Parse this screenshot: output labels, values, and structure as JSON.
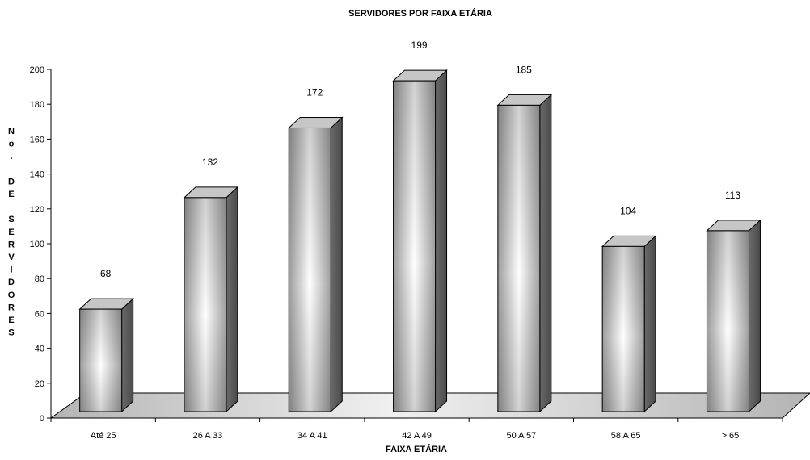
{
  "chart_data": {
    "type": "bar",
    "title": "SERVIDORES POR FAIXA ETÁRIA",
    "xlabel": "FAIXA ETÁRIA",
    "ylabel": "No. DE SERVIDORES",
    "ylabel_letters": [
      "N",
      "o",
      ".",
      "",
      "D",
      "E",
      "",
      "S",
      "E",
      "R",
      "V",
      "I",
      "D",
      "O",
      "R",
      "E",
      "S"
    ],
    "categories": [
      "Até 25",
      "26 A 33",
      "34 A 41",
      "42 A 49",
      "50 A 57",
      "58 A 65",
      "> 65"
    ],
    "values": [
      68,
      132,
      172,
      199,
      185,
      104,
      113
    ],
    "ylim": [
      0,
      200
    ],
    "yticks": [
      0,
      20,
      40,
      60,
      80,
      100,
      120,
      140,
      160,
      180,
      200
    ],
    "grid": false,
    "legend": "none",
    "style": "3d-cylinder-bars",
    "colors": {
      "bar_light": "#ffffff",
      "bar_mid": "#a6a6a6",
      "bar_side": "#606060",
      "bar_top": "#c8c8c8",
      "floor": "#bfbfbf"
    }
  }
}
